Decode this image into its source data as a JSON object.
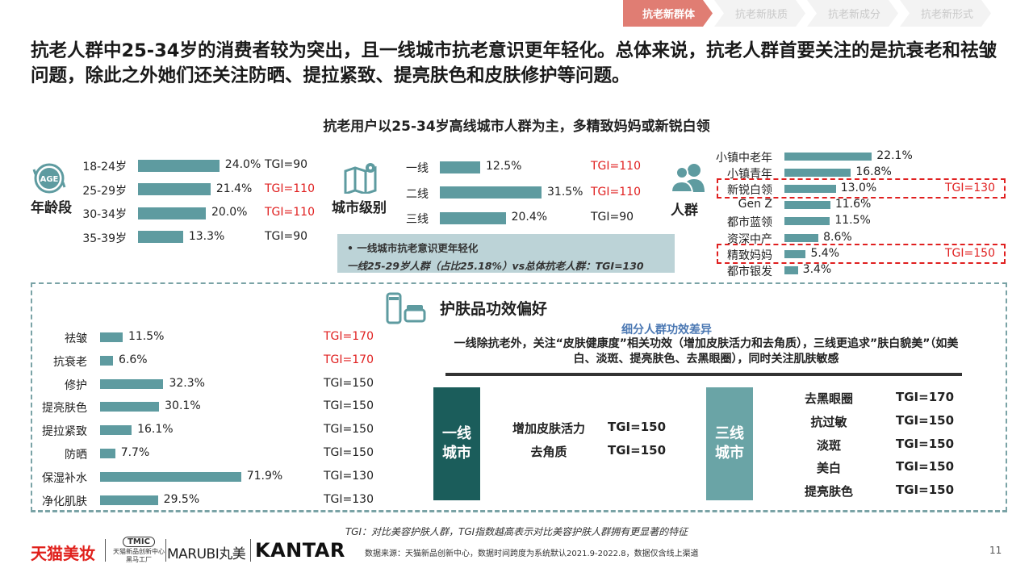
{
  "nav": [
    "抗老新群体",
    "抗老新肤质",
    "抗老新成分",
    "抗老新形式"
  ],
  "headline": "抗老人群中25-34岁的消费者较为突出，且一线城市抗老意识更年轻化。总体来说，抗老人群首要关注的是抗衰老和祛皱问题，除此之外她们还关注防晒、提拉紧致、提亮肤色和皮肤修护等问题。",
  "subtitle": "抗老用户以25-34岁高线城市人群为主，多精致妈妈或新锐白领",
  "age": {
    "icon_text": "AGE",
    "label": "年龄段",
    "rows": [
      {
        "label": "18-24岁",
        "value": 24.0,
        "display": "24.0%",
        "tgi": "TGI=90",
        "tgi_red": false
      },
      {
        "label": "25-29岁",
        "value": 21.4,
        "display": "21.4%",
        "tgi": "TGI=110",
        "tgi_red": true
      },
      {
        "label": "30-34岁",
        "value": 20.0,
        "display": "20.0%",
        "tgi": "TGI=110",
        "tgi_red": true
      },
      {
        "label": "35-39岁",
        "value": 13.3,
        "display": "13.3%",
        "tgi": "TGI=90",
        "tgi_red": false
      }
    ]
  },
  "city": {
    "label": "城市级别",
    "rows": [
      {
        "label": "一线",
        "value": 12.5,
        "display": "12.5%",
        "tgi": "TGI=110",
        "tgi_red": true
      },
      {
        "label": "二线",
        "value": 31.5,
        "display": "31.5%",
        "tgi": "TGI=110",
        "tgi_red": true
      },
      {
        "label": "三线",
        "value": 20.4,
        "display": "20.4%",
        "tgi": "TGI=90",
        "tgi_red": false
      }
    ],
    "note_line1": "• 一线城市抗老意识更年轻化",
    "note_line2": "一线25-29岁人群（占比25.18%）vs总体抗老人群：TGI=130"
  },
  "people": {
    "label": "人群",
    "rows": [
      {
        "label": "小镇中老年",
        "value": 22.1,
        "display": "22.1%",
        "tgi": ""
      },
      {
        "label": "小镇青年",
        "value": 16.8,
        "display": "16.8%",
        "tgi": ""
      },
      {
        "label": "新锐白领",
        "value": 13.0,
        "display": "13.0%",
        "tgi": "TGI=130"
      },
      {
        "label": "Gen Z",
        "value": 11.6,
        "display": "11.6%",
        "tgi": ""
      },
      {
        "label": "都市蓝领",
        "value": 11.5,
        "display": "11.5%",
        "tgi": ""
      },
      {
        "label": "资深中产",
        "value": 8.6,
        "display": "8.6%",
        "tgi": ""
      },
      {
        "label": "精致妈妈",
        "value": 5.4,
        "display": "5.4%",
        "tgi": "TGI=150"
      },
      {
        "label": "都市银发",
        "value": 3.4,
        "display": "3.4%",
        "tgi": ""
      }
    ]
  },
  "efficacy": {
    "title": "护肤品功效偏好",
    "rows": [
      {
        "label": "祛皱",
        "value": 11.5,
        "display": "11.5%",
        "tgi": "TGI=170",
        "tgi_red": true
      },
      {
        "label": "抗衰老",
        "value": 6.6,
        "display": "6.6%",
        "tgi": "TGI=170",
        "tgi_red": true
      },
      {
        "label": "修护",
        "value": 32.3,
        "display": "32.3%",
        "tgi": "TGI=150",
        "tgi_red": false
      },
      {
        "label": "提亮肤色",
        "value": 30.1,
        "display": "30.1%",
        "tgi": "TGI=150",
        "tgi_red": false
      },
      {
        "label": "提拉紧致",
        "value": 16.1,
        "display": "16.1%",
        "tgi": "TGI=150",
        "tgi_red": false
      },
      {
        "label": "防晒",
        "value": 7.7,
        "display": "7.7%",
        "tgi": "TGI=150",
        "tgi_red": false
      },
      {
        "label": "保湿补水",
        "value": 71.9,
        "display": "71.9%",
        "tgi": "TGI=130",
        "tgi_red": false
      },
      {
        "label": "净化肌肤",
        "value": 29.5,
        "display": "29.5%",
        "tgi": "TGI=130",
        "tgi_red": false
      }
    ]
  },
  "segment": {
    "title": "细分人群功效差异",
    "desc": "一线除抗老外，关注“皮肤健康度”相关功效（增加皮肤活力和去角质），三线更追求”肤白貌美”（如美白、淡斑、提亮肤色、去黑眼圈），同时关注肌肤敏感",
    "tier1": {
      "box": "一线\n城市",
      "items": [
        {
          "label": "增加皮肤活力",
          "tgi": "TGI=150"
        },
        {
          "label": "去角质",
          "tgi": "TGI=150"
        }
      ]
    },
    "tier3": {
      "box": "三线\n城市",
      "items": [
        {
          "label": "去黑眼圈",
          "tgi": "TGI=170"
        },
        {
          "label": "抗过敏",
          "tgi": "TGI=150"
        },
        {
          "label": "淡斑",
          "tgi": "TGI=150"
        },
        {
          "label": "美白",
          "tgi": "TGI=150"
        },
        {
          "label": "提亮肤色",
          "tgi": "TGI=150"
        }
      ]
    }
  },
  "footnote": "TGI：对比美容护肤人群，TGI指数越高表示对比美容护肤人群拥有更显著的特征",
  "source": "数据来源：天猫新品创新中心，数据时间跨度为系统默认2021.9-2022.8，数据仅含线上渠道",
  "page_number": "11",
  "logos": {
    "tmall": "天猫美妆",
    "tmic": "TMIC",
    "tmic_line1": "天猫新品创新中心",
    "tmic_line2": "黑马工厂",
    "marubi": "MARUBI丸美",
    "kantar": "KANTAR"
  },
  "colors": {
    "bar": "#5e9ba0",
    "red": "#e02020",
    "accent": "#e07d73",
    "dark_teal": "#1b5d5b",
    "mid_teal": "#6aa4a6"
  }
}
